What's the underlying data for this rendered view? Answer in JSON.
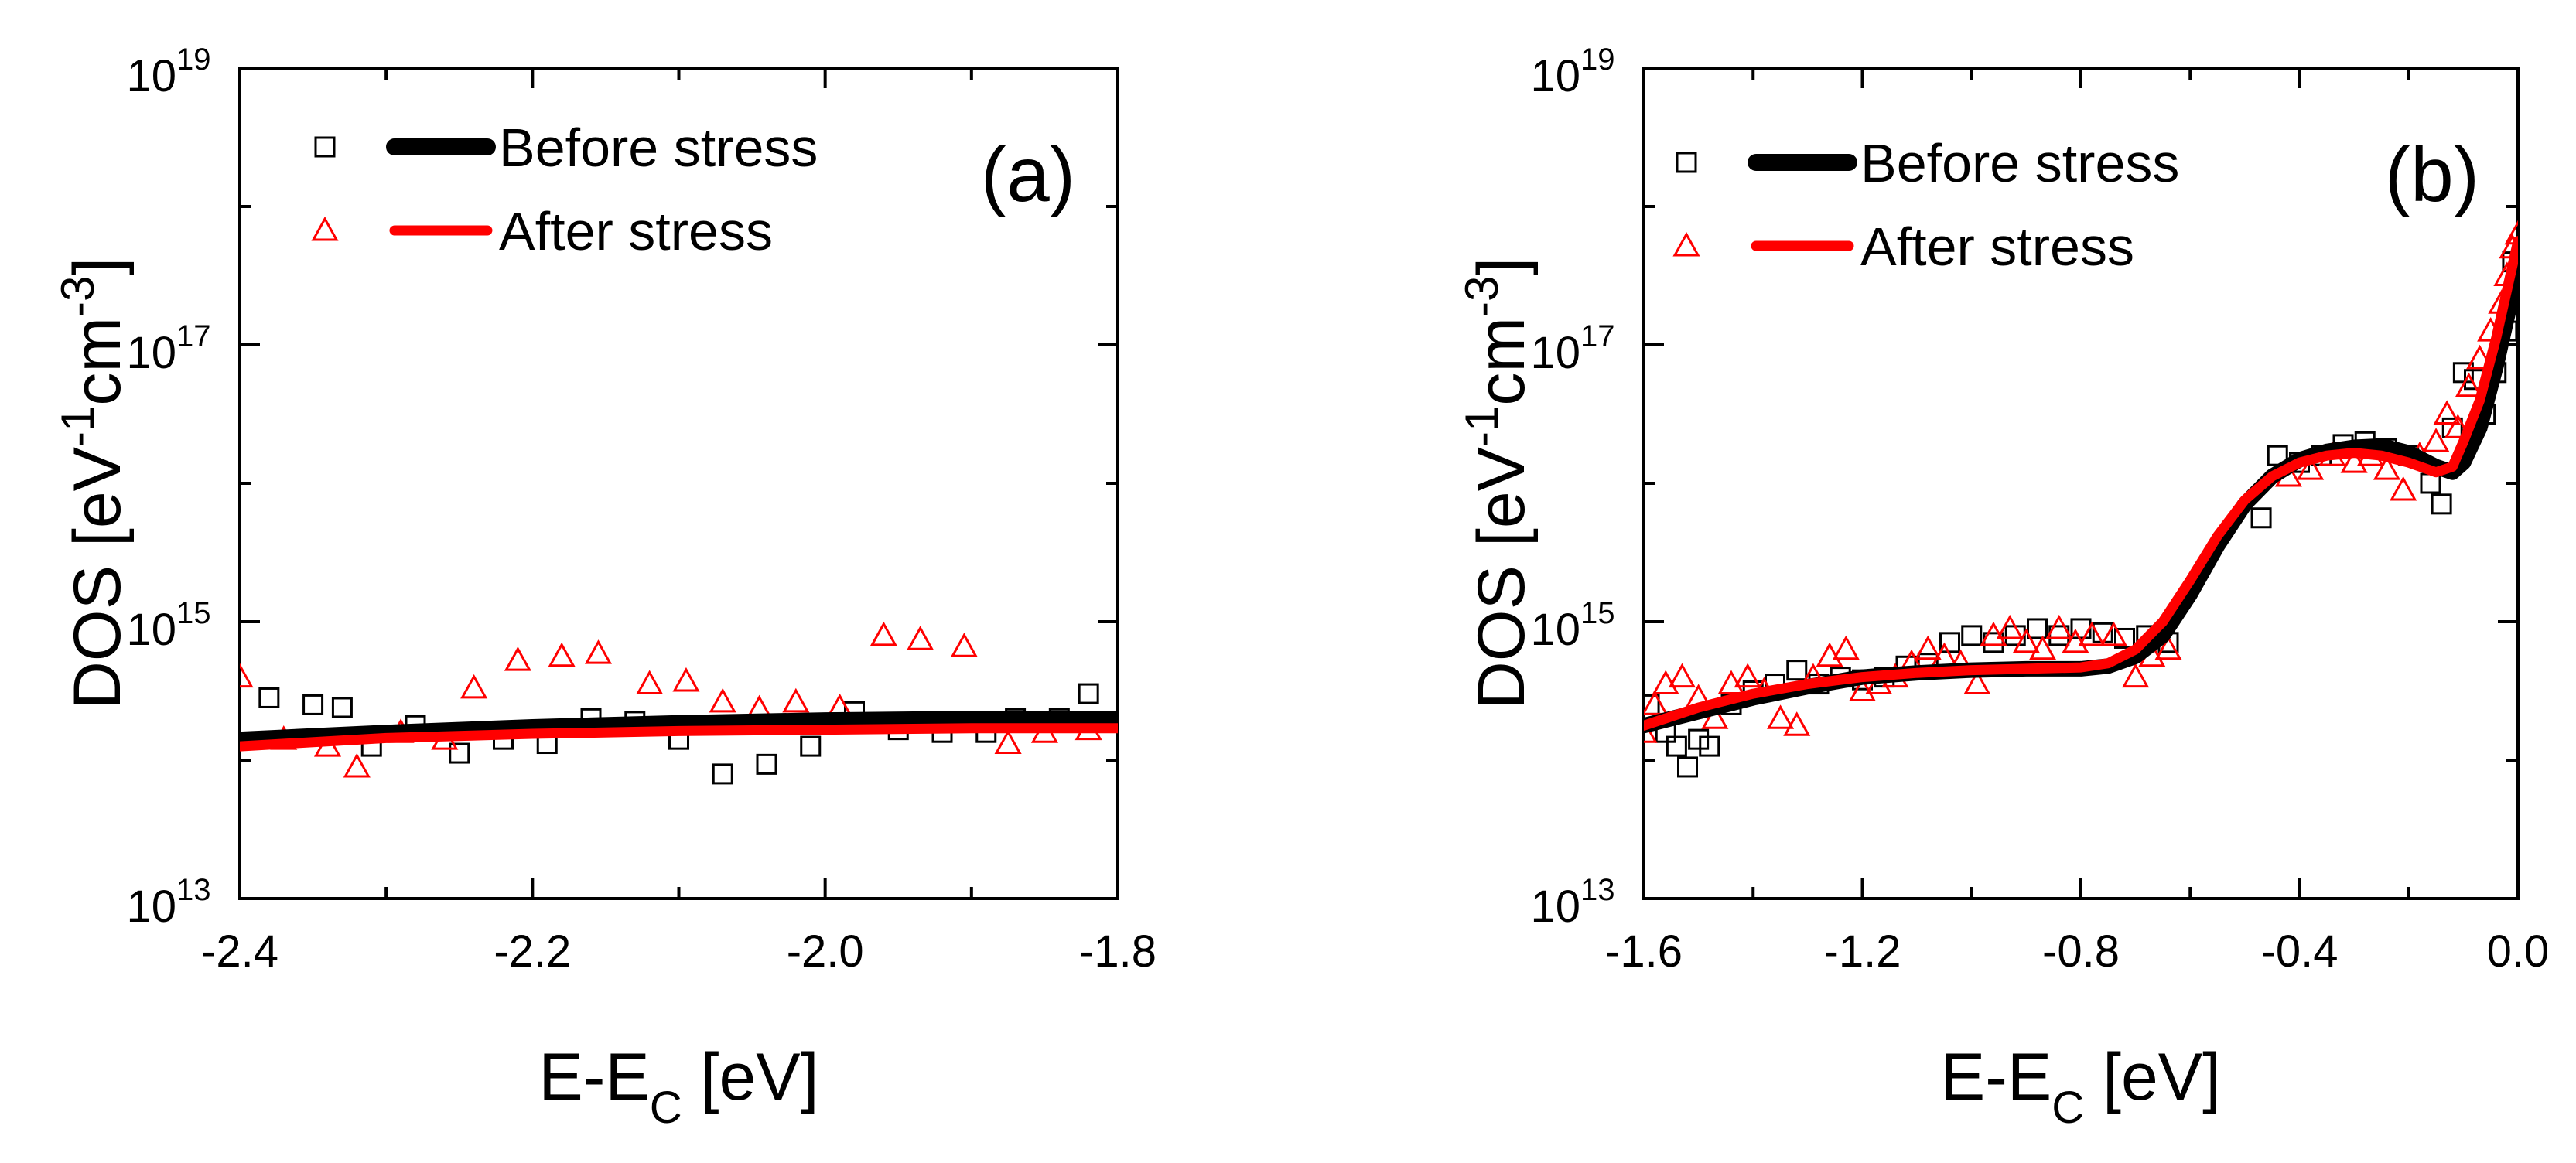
{
  "chart_data": [
    {
      "panel": "(a)",
      "type": "line",
      "xlabel_main": "E-E",
      "xlabel_sub": "C",
      "xlabel_tail": " [eV]",
      "ylabel_main": "DOS  [eV",
      "ylabel_exp1": "-1",
      "ylabel_mid": "cm",
      "ylabel_exp2": "-3",
      "ylabel_tail": "]",
      "xlim": [
        -2.4,
        -1.8
      ],
      "ylim_log10": [
        13,
        19
      ],
      "x_ticks": [
        {
          "value": -2.4,
          "label": "-2.4"
        },
        {
          "value": -2.2,
          "label": "-2.2"
        },
        {
          "value": -2.0,
          "label": "-2.0"
        },
        {
          "value": -1.8,
          "label": "-1.8"
        }
      ],
      "y_ticks": [
        {
          "exp": 13,
          "base": "10",
          "sup": "13"
        },
        {
          "exp": 15,
          "base": "10",
          "sup": "15"
        },
        {
          "exp": 17,
          "base": "10",
          "sup": "17"
        },
        {
          "exp": 19,
          "base": "10",
          "sup": "19"
        }
      ],
      "legend": [
        {
          "label": "Before stress",
          "marker": "square",
          "color": "#000000"
        },
        {
          "label": "After stress",
          "marker": "triangle",
          "color": "#ff0000"
        }
      ],
      "series": [
        {
          "name": "Before stress",
          "marker": "square",
          "color": "#000000",
          "points": [
            [
              -2.38,
              14.45
            ],
            [
              -2.35,
              14.4
            ],
            [
              -2.33,
              14.38
            ],
            [
              -2.31,
              14.1
            ],
            [
              -2.28,
              14.25
            ],
            [
              -2.25,
              14.05
            ],
            [
              -2.22,
              14.15
            ],
            [
              -2.19,
              14.12
            ],
            [
              -2.16,
              14.3
            ],
            [
              -2.13,
              14.28
            ],
            [
              -2.1,
              14.15
            ],
            [
              -2.07,
              13.9
            ],
            [
              -2.04,
              13.97
            ],
            [
              -2.01,
              14.1
            ],
            [
              -1.98,
              14.35
            ],
            [
              -1.95,
              14.22
            ],
            [
              -1.92,
              14.2
            ],
            [
              -1.89,
              14.2
            ],
            [
              -1.87,
              14.3
            ],
            [
              -1.84,
              14.3
            ],
            [
              -1.82,
              14.48
            ]
          ],
          "fit": [
            [
              -2.4,
              14.15
            ],
            [
              -2.3,
              14.2
            ],
            [
              -2.2,
              14.24
            ],
            [
              -2.1,
              14.27
            ],
            [
              -2.0,
              14.29
            ],
            [
              -1.9,
              14.3
            ],
            [
              -1.8,
              14.3
            ]
          ]
        },
        {
          "name": "After stress",
          "marker": "triangle",
          "color": "#ff0000",
          "points": [
            [
              -2.4,
              14.6
            ],
            [
              -2.37,
              14.15
            ],
            [
              -2.34,
              14.1
            ],
            [
              -2.32,
              13.95
            ],
            [
              -2.29,
              14.2
            ],
            [
              -2.26,
              14.15
            ],
            [
              -2.24,
              14.52
            ],
            [
              -2.21,
              14.72
            ],
            [
              -2.18,
              14.75
            ],
            [
              -2.155,
              14.77
            ],
            [
              -2.12,
              14.55
            ],
            [
              -2.095,
              14.57
            ],
            [
              -2.07,
              14.42
            ],
            [
              -2.045,
              14.37
            ],
            [
              -2.02,
              14.42
            ],
            [
              -1.99,
              14.38
            ],
            [
              -1.96,
              14.9
            ],
            [
              -1.935,
              14.87
            ],
            [
              -1.905,
              14.82
            ],
            [
              -1.875,
              14.12
            ],
            [
              -1.85,
              14.2
            ],
            [
              -1.82,
              14.22
            ]
          ],
          "fit": [
            [
              -2.4,
              14.1
            ],
            [
              -2.3,
              14.16
            ],
            [
              -2.2,
              14.19
            ],
            [
              -2.1,
              14.21
            ],
            [
              -2.0,
              14.22
            ],
            [
              -1.9,
              14.23
            ],
            [
              -1.8,
              14.23
            ]
          ]
        }
      ]
    },
    {
      "panel": "(b)",
      "type": "line",
      "xlabel_main": "E-E",
      "xlabel_sub": "C",
      "xlabel_tail": " [eV]",
      "ylabel_main": "DOS  [eV",
      "ylabel_exp1": "-1",
      "ylabel_mid": "cm",
      "ylabel_exp2": "-3",
      "ylabel_tail": "]",
      "xlim": [
        -1.6,
        0.0
      ],
      "ylim_log10": [
        13,
        19
      ],
      "x_ticks": [
        {
          "value": -1.6,
          "label": "-1.6"
        },
        {
          "value": -1.2,
          "label": "-1.2"
        },
        {
          "value": -0.8,
          "label": "-0.8"
        },
        {
          "value": -0.4,
          "label": "-0.4"
        },
        {
          "value": 0.0,
          "label": "0.0"
        }
      ],
      "y_ticks": [
        {
          "exp": 13,
          "base": "10",
          "sup": "13"
        },
        {
          "exp": 15,
          "base": "10",
          "sup": "15"
        },
        {
          "exp": 17,
          "base": "10",
          "sup": "17"
        },
        {
          "exp": 19,
          "base": "10",
          "sup": "19"
        }
      ],
      "legend": [
        {
          "label": "Before stress",
          "marker": "square",
          "color": "#000000"
        },
        {
          "label": "After stress",
          "marker": "triangle",
          "color": "#ff0000"
        }
      ],
      "series": [
        {
          "name": "Before stress",
          "marker": "square",
          "color": "#000000",
          "points": [
            [
              -1.59,
              14.4
            ],
            [
              -1.56,
              14.2
            ],
            [
              -1.54,
              14.1
            ],
            [
              -1.52,
              13.95
            ],
            [
              -1.5,
              14.15
            ],
            [
              -1.48,
              14.1
            ],
            [
              -1.44,
              14.4
            ],
            [
              -1.4,
              14.5
            ],
            [
              -1.36,
              14.55
            ],
            [
              -1.32,
              14.65
            ],
            [
              -1.28,
              14.55
            ],
            [
              -1.24,
              14.6
            ],
            [
              -1.2,
              14.58
            ],
            [
              -1.16,
              14.6
            ],
            [
              -1.12,
              14.68
            ],
            [
              -1.08,
              14.7
            ],
            [
              -1.04,
              14.85
            ],
            [
              -1.0,
              14.9
            ],
            [
              -0.96,
              14.85
            ],
            [
              -0.92,
              14.9
            ],
            [
              -0.88,
              14.95
            ],
            [
              -0.84,
              14.9
            ],
            [
              -0.8,
              14.95
            ],
            [
              -0.76,
              14.92
            ],
            [
              -0.72,
              14.88
            ],
            [
              -0.68,
              14.9
            ],
            [
              -0.64,
              14.85
            ],
            [
              -0.44,
              16.2
            ],
            [
              -0.47,
              15.75
            ],
            [
              -0.4,
              16.15
            ],
            [
              -0.36,
              16.2
            ],
            [
              -0.32,
              16.28
            ],
            [
              -0.28,
              16.3
            ],
            [
              -0.24,
              16.25
            ],
            [
              -0.2,
              16.2
            ],
            [
              -0.16,
              16.0
            ],
            [
              -0.14,
              15.85
            ],
            [
              -0.12,
              16.4
            ],
            [
              -0.1,
              16.8
            ],
            [
              -0.08,
              16.75
            ],
            [
              -0.06,
              16.5
            ],
            [
              -0.04,
              16.8
            ],
            [
              -0.02,
              17.1
            ],
            [
              -0.01,
              17.6
            ]
          ],
          "fit": [
            [
              -1.6,
              14.25
            ],
            [
              -1.5,
              14.35
            ],
            [
              -1.4,
              14.45
            ],
            [
              -1.3,
              14.53
            ],
            [
              -1.2,
              14.6
            ],
            [
              -1.1,
              14.63
            ],
            [
              -1.0,
              14.65
            ],
            [
              -0.9,
              14.66
            ],
            [
              -0.8,
              14.66
            ],
            [
              -0.75,
              14.68
            ],
            [
              -0.7,
              14.75
            ],
            [
              -0.65,
              14.9
            ],
            [
              -0.6,
              15.2
            ],
            [
              -0.55,
              15.55
            ],
            [
              -0.5,
              15.85
            ],
            [
              -0.45,
              16.05
            ],
            [
              -0.4,
              16.17
            ],
            [
              -0.35,
              16.23
            ],
            [
              -0.3,
              16.26
            ],
            [
              -0.25,
              16.27
            ],
            [
              -0.2,
              16.22
            ],
            [
              -0.15,
              16.12
            ],
            [
              -0.12,
              16.08
            ],
            [
              -0.1,
              16.15
            ],
            [
              -0.07,
              16.4
            ],
            [
              -0.04,
              16.85
            ],
            [
              -0.02,
              17.2
            ],
            [
              0.0,
              17.55
            ]
          ]
        },
        {
          "name": "After stress",
          "marker": "triangle",
          "color": "#ff0000",
          "points": [
            [
              -1.6,
              14.2
            ],
            [
              -1.58,
              14.4
            ],
            [
              -1.56,
              14.55
            ],
            [
              -1.53,
              14.6
            ],
            [
              -1.5,
              14.45
            ],
            [
              -1.47,
              14.3
            ],
            [
              -1.44,
              14.55
            ],
            [
              -1.41,
              14.6
            ],
            [
              -1.38,
              14.5
            ],
            [
              -1.35,
              14.3
            ],
            [
              -1.32,
              14.25
            ],
            [
              -1.29,
              14.6
            ],
            [
              -1.26,
              14.75
            ],
            [
              -1.23,
              14.8
            ],
            [
              -1.2,
              14.5
            ],
            [
              -1.17,
              14.55
            ],
            [
              -1.14,
              14.6
            ],
            [
              -1.11,
              14.7
            ],
            [
              -1.08,
              14.8
            ],
            [
              -1.05,
              14.75
            ],
            [
              -1.02,
              14.7
            ],
            [
              -0.99,
              14.55
            ],
            [
              -0.96,
              14.9
            ],
            [
              -0.93,
              14.95
            ],
            [
              -0.9,
              14.85
            ],
            [
              -0.87,
              14.8
            ],
            [
              -0.84,
              14.95
            ],
            [
              -0.81,
              14.85
            ],
            [
              -0.78,
              14.9
            ],
            [
              -0.74,
              14.9
            ],
            [
              -0.7,
              14.6
            ],
            [
              -0.67,
              14.75
            ],
            [
              -0.64,
              14.8
            ],
            [
              -0.42,
              16.05
            ],
            [
              -0.38,
              16.1
            ],
            [
              -0.34,
              16.2
            ],
            [
              -0.3,
              16.15
            ],
            [
              -0.27,
              16.2
            ],
            [
              -0.24,
              16.1
            ],
            [
              -0.21,
              15.95
            ],
            [
              -0.18,
              16.2
            ],
            [
              -0.15,
              16.3
            ],
            [
              -0.13,
              16.5
            ],
            [
              -0.11,
              16.4
            ],
            [
              -0.09,
              16.7
            ],
            [
              -0.07,
              16.9
            ],
            [
              -0.05,
              17.1
            ],
            [
              -0.03,
              17.3
            ],
            [
              -0.02,
              17.5
            ],
            [
              -0.01,
              17.7
            ],
            [
              0.0,
              17.8
            ]
          ],
          "fit": [
            [
              -1.6,
              14.25
            ],
            [
              -1.5,
              14.38
            ],
            [
              -1.4,
              14.48
            ],
            [
              -1.3,
              14.55
            ],
            [
              -1.2,
              14.6
            ],
            [
              -1.1,
              14.63
            ],
            [
              -1.0,
              14.65
            ],
            [
              -0.9,
              14.66
            ],
            [
              -0.8,
              14.67
            ],
            [
              -0.75,
              14.7
            ],
            [
              -0.7,
              14.8
            ],
            [
              -0.65,
              15.0
            ],
            [
              -0.6,
              15.3
            ],
            [
              -0.55,
              15.62
            ],
            [
              -0.5,
              15.88
            ],
            [
              -0.45,
              16.05
            ],
            [
              -0.4,
              16.15
            ],
            [
              -0.35,
              16.2
            ],
            [
              -0.3,
              16.22
            ],
            [
              -0.25,
              16.2
            ],
            [
              -0.2,
              16.15
            ],
            [
              -0.15,
              16.08
            ],
            [
              -0.12,
              16.12
            ],
            [
              -0.1,
              16.3
            ],
            [
              -0.07,
              16.6
            ],
            [
              -0.04,
              17.05
            ],
            [
              -0.02,
              17.4
            ],
            [
              0.0,
              17.75
            ]
          ]
        }
      ]
    }
  ]
}
